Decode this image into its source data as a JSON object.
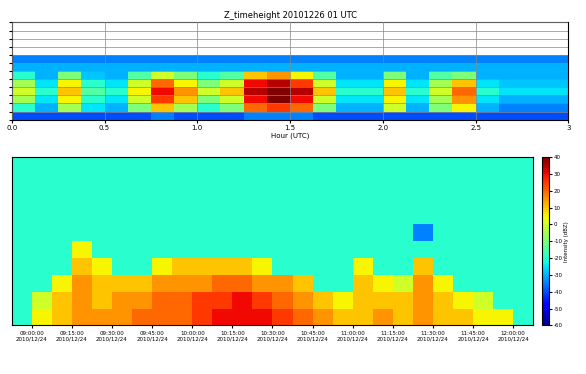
{
  "chart_data": [
    {
      "type": "heatmap",
      "title": "Z_timeheight 20101226 01 UTC",
      "x_label": "Hour (UTC)",
      "color": "jet",
      "color_range": [
        -60,
        40
      ],
      "xlim": [
        0,
        3
      ],
      "xticks": [
        {
          "value": 0,
          "label": "0.0"
        },
        0.5,
        1.0,
        1.5,
        2.0,
        2.5,
        3
      ],
      "ylim": [
        0,
        12
      ],
      "yticks": [
        0,
        1,
        2,
        3,
        4,
        5,
        6,
        7,
        8,
        9,
        10,
        11,
        12
      ],
      "tick_labels": "x",
      "grid": true,
      "x_edges": [
        0,
        0.125,
        0.25,
        0.375,
        0.5,
        0.625,
        0.75,
        0.875,
        1.0,
        1.125,
        1.25,
        1.375,
        1.5,
        1.625,
        1.75,
        1.875,
        2.0,
        2.125,
        2.25,
        2.375,
        2.5,
        2.625,
        2.75,
        2.875,
        3.0
      ],
      "y_edges": [
        0,
        1,
        2,
        3,
        4,
        5,
        6,
        7,
        8
      ],
      "cells": [
        [
          -40,
          -40,
          -40,
          -40,
          -40,
          -40,
          -35,
          -40,
          -40,
          -40,
          -35,
          -35,
          -35,
          -40,
          -40,
          -40,
          -40,
          -40,
          -40,
          -40,
          -40,
          -40,
          -40,
          -40
        ],
        [
          -20,
          -30,
          -5,
          -25,
          -30,
          -10,
          10,
          -5,
          -20,
          -10,
          20,
          25,
          20,
          -10,
          -30,
          -30,
          0,
          -30,
          -10,
          5,
          -30,
          -35,
          -35,
          -35
        ],
        [
          -5,
          -25,
          5,
          -20,
          -25,
          0,
          25,
          10,
          -10,
          0,
          30,
          40,
          30,
          0,
          -25,
          -25,
          5,
          -25,
          -5,
          15,
          -25,
          -30,
          -30,
          -30
        ],
        [
          0,
          -20,
          10,
          -15,
          -20,
          5,
          30,
          15,
          0,
          10,
          35,
          40,
          35,
          10,
          -20,
          -20,
          10,
          -20,
          0,
          20,
          -20,
          -25,
          -25,
          -25
        ],
        [
          -5,
          -25,
          5,
          -20,
          -25,
          0,
          20,
          5,
          -10,
          0,
          30,
          35,
          25,
          0,
          -25,
          -25,
          5,
          -25,
          -5,
          10,
          -25,
          -28,
          -28,
          -28
        ],
        [
          -20,
          -30,
          -10,
          -28,
          -30,
          -15,
          0,
          -10,
          -20,
          -15,
          10,
          15,
          5,
          -15,
          -30,
          -30,
          -10,
          -30,
          -15,
          -10,
          -30,
          -30,
          -30,
          -30
        ],
        [
          -30,
          -30,
          -30,
          -30,
          -30,
          -30,
          -30,
          -30,
          -30,
          -30,
          -30,
          -30,
          -30,
          -30,
          -30,
          -30,
          -30,
          -30,
          -30,
          -30,
          -30,
          -30,
          -30,
          -30
        ],
        [
          -35,
          -35,
          -35,
          -35,
          -35,
          -35,
          -35,
          -35,
          -35,
          -35,
          -35,
          -35,
          -35,
          -35,
          -35,
          -35,
          -35,
          -35,
          -35,
          -35,
          -35,
          -35,
          -35,
          -35
        ]
      ]
    },
    {
      "type": "heatmap",
      "color": "jet",
      "xlim": [
        8.875,
        12.125
      ],
      "xticks": [
        {
          "value": 9.0,
          "label": "09:00:00\n2010/12/24"
        },
        {
          "value": 9.25,
          "label": "09:15:00\n2010/12/24"
        },
        {
          "value": 9.5,
          "label": "09:30:00\n2010/12/24"
        },
        {
          "value": 9.75,
          "label": "09:45:00\n2010/12/24"
        },
        {
          "value": 10.0,
          "label": "10:00:00\n2010/12/24"
        },
        {
          "value": 10.25,
          "label": "10:15:00\n2010/12/24"
        },
        {
          "value": 10.5,
          "label": "10:30:00\n2010/12/24"
        },
        {
          "value": 10.75,
          "label": "10:45:00\n2010/12/24"
        },
        {
          "value": 11.0,
          "label": "11:00:00\n2010/12/24"
        },
        {
          "value": 11.25,
          "label": "11:15:00\n2010/12/24"
        },
        {
          "value": 11.5,
          "label": "11:30:00\n2010/12/24"
        },
        {
          "value": 11.75,
          "label": "11:45:00\n2010/12/24"
        },
        {
          "value": 12.0,
          "label": "12:00:00\n2010/12/24"
        }
      ],
      "ylim": [
        0,
        10
      ],
      "yticks": [],
      "tick_labels": "x",
      "colorbar_range": [
        -60,
        40
      ],
      "colorbar_ticks": [
        -60,
        -50,
        -40,
        -30,
        -20,
        -10,
        0,
        10,
        20,
        30,
        40
      ],
      "colorbar_label": "Intensity (dBZ)",
      "x_edges": [
        8.875,
        9.0,
        9.125,
        9.25,
        9.375,
        9.5,
        9.625,
        9.75,
        9.875,
        10.0,
        10.125,
        10.25,
        10.375,
        10.5,
        10.625,
        10.75,
        10.875,
        11.0,
        11.125,
        11.25,
        11.375,
        11.5,
        11.625,
        11.75,
        11.875,
        12.0,
        12.125
      ],
      "y_edges": [
        0,
        1,
        2,
        3,
        4,
        5,
        6,
        7,
        8,
        9,
        10
      ],
      "cells": [
        [
          -20,
          5,
          10,
          15,
          15,
          15,
          20,
          20,
          20,
          25,
          30,
          30,
          30,
          25,
          20,
          15,
          10,
          10,
          15,
          10,
          15,
          10,
          10,
          5,
          5,
          -20
        ],
        [
          -20,
          0,
          10,
          15,
          10,
          15,
          15,
          20,
          20,
          25,
          25,
          30,
          25,
          20,
          15,
          10,
          5,
          10,
          10,
          10,
          15,
          10,
          5,
          0,
          -20,
          -20
        ],
        [
          -20,
          -20,
          5,
          15,
          10,
          10,
          10,
          15,
          15,
          15,
          20,
          20,
          15,
          15,
          10,
          -20,
          -20,
          10,
          5,
          0,
          15,
          5,
          -20,
          -20,
          -20,
          -20
        ],
        [
          -20,
          -20,
          -20,
          10,
          5,
          -20,
          -20,
          5,
          10,
          10,
          10,
          10,
          5,
          -20,
          -20,
          -20,
          -20,
          5,
          -20,
          -20,
          10,
          -20,
          -20,
          -20,
          -20,
          -20
        ],
        [
          -20,
          -20,
          -20,
          5,
          -20,
          -20,
          -20,
          -20,
          -20,
          -20,
          -20,
          -20,
          -20,
          -20,
          -20,
          -20,
          -20,
          -20,
          -20,
          -20,
          -20,
          -20,
          -20,
          -20,
          -20,
          -20
        ],
        [
          -20,
          -20,
          -20,
          -20,
          -20,
          -20,
          -20,
          -20,
          -20,
          -20,
          -20,
          -20,
          -20,
          -20,
          -20,
          -20,
          -20,
          -20,
          -20,
          -20,
          -35,
          -20,
          -20,
          -20,
          -20,
          -20
        ],
        [
          -20,
          -20,
          -20,
          -20,
          -20,
          -20,
          -20,
          -20,
          -20,
          -20,
          -20,
          -20,
          -20,
          -20,
          -20,
          -20,
          -20,
          -20,
          -20,
          -20,
          -20,
          -20,
          -20,
          -20,
          -20,
          -20
        ],
        [
          -20,
          -20,
          -20,
          -20,
          -20,
          -20,
          -20,
          -20,
          -20,
          -20,
          -20,
          -20,
          -20,
          -20,
          -20,
          -20,
          -20,
          -20,
          -20,
          -20,
          -20,
          -20,
          -20,
          -20,
          -20,
          -20
        ],
        [
          -20,
          -20,
          -20,
          -20,
          -20,
          -20,
          -20,
          -20,
          -20,
          -20,
          -20,
          -20,
          -20,
          -20,
          -20,
          -20,
          -20,
          -20,
          -20,
          -20,
          -20,
          -20,
          -20,
          -20,
          -20,
          -20
        ],
        [
          -20,
          -20,
          -20,
          -20,
          -20,
          -20,
          -20,
          -20,
          -20,
          -20,
          -20,
          -20,
          -20,
          -20,
          -20,
          -20,
          -20,
          -20,
          -20,
          -20,
          -20,
          -20,
          -20,
          -20,
          -20,
          -20
        ]
      ]
    }
  ]
}
